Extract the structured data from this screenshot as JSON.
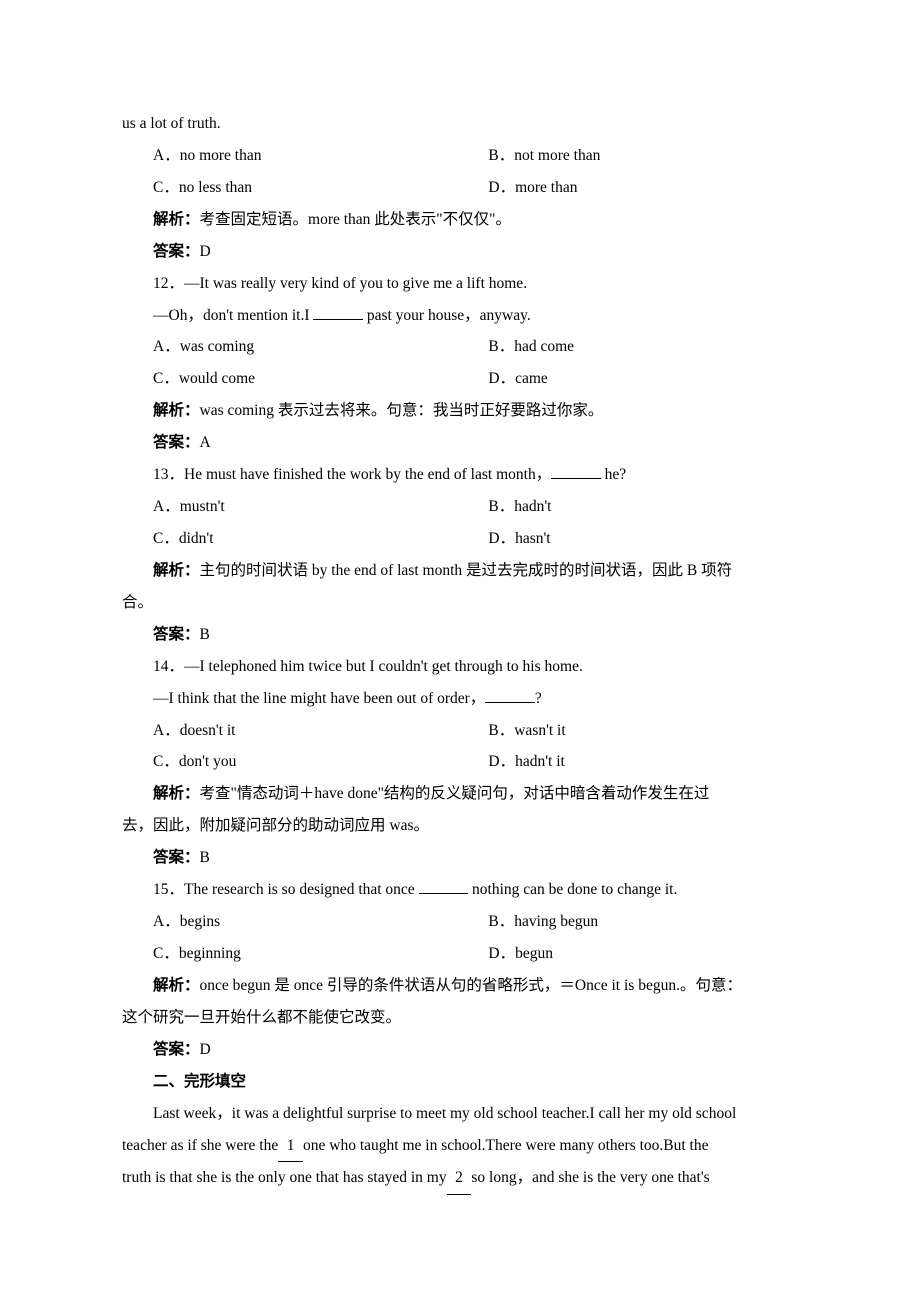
{
  "q11": {
    "frag_top": "us a lot of truth.",
    "A": "A．no more than",
    "B": "B．not more than",
    "C": "C．no less than",
    "D": "D．more than",
    "exp_label": "解析：",
    "exp": "考查固定短语。more than 此处表示\"不仅仅\"。",
    "ans_label": "答案：",
    "ans": "D"
  },
  "q12": {
    "stem1": "12．—It was really very kind of you to give me a lift home.",
    "stem2a": "—Oh，don't mention it.I ",
    "stem2b": " past your house，anyway.",
    "A": "A．was coming",
    "B": "B．had come",
    "C": "C．would come",
    "D": "D．came",
    "exp_label": "解析：",
    "exp": "was coming 表示过去将来。句意：我当时正好要路过你家。",
    "ans_label": "答案：",
    "ans": "A"
  },
  "q13": {
    "stem_a": "13．He must have finished the work by the end of last month，",
    "stem_b": " he?",
    "A": "A．mustn't",
    "B": "B．hadn't",
    "C": "C．didn't",
    "D": "D．hasn't",
    "exp_label": "解析：",
    "exp1": "主句的时间状语 by the end of last month 是过去完成时的时间状语，因此 B 项符",
    "exp2": "合。",
    "ans_label": "答案：",
    "ans": "B"
  },
  "q14": {
    "stem1": "14．—I telephoned him twice but I couldn't get through to his home.",
    "stem2a": "—I think that the line might have been out of order，",
    "stem2b": "?",
    "A": "A．doesn't it",
    "B": "B．wasn't it",
    "C": "C．don't you",
    "D": "D．hadn't it",
    "exp_label": "解析：",
    "exp1": "考查\"情态动词＋have done\"结构的反义疑问句，对话中暗含着动作发生在过",
    "exp2": "去，因此，附加疑问部分的助动词应用 was。",
    "ans_label": "答案：",
    "ans": "B"
  },
  "q15": {
    "stem_a": "15．The research is so designed that once ",
    "stem_b": " nothing can be done to change it.",
    "A": "A．begins",
    "B": "B．having begun",
    "C": "C．beginning",
    "D": "D．begun",
    "exp_label": "解析：",
    "exp1": "once begun 是 once 引导的条件状语从句的省略形式，＝Once it is begun.。句意：",
    "exp2": "这个研究一旦开始什么都不能使它改变。",
    "ans_label": "答案：",
    "ans": "D"
  },
  "section2": {
    "title": "二、完形填空",
    "p1a": "Last week，it was a delightful surprise to meet my old school teacher.I call her my old school",
    "p2a": "teacher as if she were the",
    "p2b": "one who taught me in school.There were many others too.But the",
    "p3a": "truth is that she is the only one that has stayed in my",
    "p3b": "so long，and she is the very one that's",
    "blank1": "1",
    "blank2": "2"
  }
}
